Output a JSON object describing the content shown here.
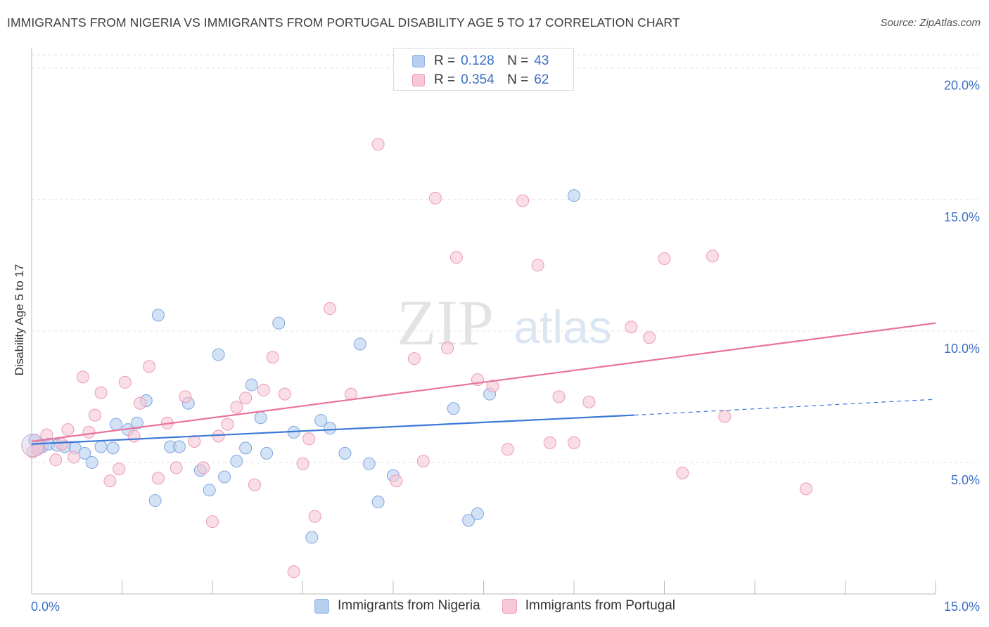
{
  "title": "IMMIGRANTS FROM NIGERIA VS IMMIGRANTS FROM PORTUGAL DISABILITY AGE 5 TO 17 CORRELATION CHART",
  "source": "Source: ZipAtlas.com",
  "watermark": {
    "zip": "ZIP",
    "atlas": "atlas"
  },
  "legend": {
    "r_label": "R =",
    "n_label": "N =",
    "rows": [
      {
        "r": "0.128",
        "n": "43",
        "fill": "#b7cff0",
        "stroke": "#8eb2e6"
      },
      {
        "r": "0.354",
        "n": "62",
        "fill": "#f7c8d6",
        "stroke": "#ef9fb8"
      }
    ]
  },
  "chart_data": {
    "type": "scatter",
    "title": "IMMIGRANTS FROM NIGERIA VS IMMIGRANTS FROM PORTUGAL DISABILITY AGE 5 TO 17 CORRELATION CHART",
    "xlabel": "",
    "ylabel": "Disability Age 5 to 17",
    "xlim": [
      0,
      15
    ],
    "ylim": [
      0,
      20.5
    ],
    "x_tick_labels": [
      "0.0%",
      "15.0%"
    ],
    "y_ticks": [
      5,
      10,
      15,
      20
    ],
    "y_tick_labels": [
      "5.0%",
      "10.0%",
      "15.0%",
      "20.0%"
    ],
    "grid": true,
    "legend_position": "top-center",
    "series": [
      {
        "name": "Immigrants from Nigeria",
        "color": "#3c78d8",
        "fill": "#b7cff0",
        "r": 0.128,
        "n": 43,
        "trend": {
          "x": [
            0.0,
            10.0
          ],
          "y": [
            5.7,
            6.8
          ]
        },
        "trend_extension": {
          "x": [
            10.0,
            15.0
          ],
          "y": [
            6.8,
            7.4
          ]
        },
        "points": [
          [
            0.05,
            5.85
          ],
          [
            0.18,
            5.6
          ],
          [
            0.28,
            5.7
          ],
          [
            0.42,
            5.65
          ],
          [
            0.55,
            5.6
          ],
          [
            0.72,
            5.55
          ],
          [
            0.88,
            5.35
          ],
          [
            1.0,
            5.0
          ],
          [
            1.15,
            5.6
          ],
          [
            1.35,
            5.55
          ],
          [
            1.4,
            6.45
          ],
          [
            1.6,
            6.25
          ],
          [
            1.75,
            6.5
          ],
          [
            1.9,
            7.35
          ],
          [
            2.05,
            3.55
          ],
          [
            2.1,
            10.6
          ],
          [
            2.3,
            5.6
          ],
          [
            2.45,
            5.6
          ],
          [
            2.6,
            7.25
          ],
          [
            2.8,
            4.7
          ],
          [
            2.95,
            3.95
          ],
          [
            3.1,
            9.1
          ],
          [
            3.2,
            4.45
          ],
          [
            3.4,
            5.05
          ],
          [
            3.55,
            5.55
          ],
          [
            3.65,
            7.95
          ],
          [
            3.8,
            6.7
          ],
          [
            3.9,
            5.35
          ],
          [
            4.1,
            10.3
          ],
          [
            4.35,
            6.15
          ],
          [
            4.65,
            2.15
          ],
          [
            4.8,
            6.6
          ],
          [
            4.95,
            6.3
          ],
          [
            5.2,
            5.35
          ],
          [
            5.45,
            9.5
          ],
          [
            5.6,
            4.95
          ],
          [
            5.75,
            3.5
          ],
          [
            6.0,
            4.5
          ],
          [
            7.0,
            7.05
          ],
          [
            7.25,
            2.8
          ],
          [
            7.4,
            3.05
          ],
          [
            7.6,
            7.6
          ],
          [
            9.0,
            15.15
          ]
        ]
      },
      {
        "name": "Immigrants from Portugal",
        "color": "#e8739b",
        "fill": "#f7c8d6",
        "r": 0.354,
        "n": 62,
        "trend": {
          "x": [
            0.0,
            15.0
          ],
          "y": [
            5.8,
            10.3
          ]
        },
        "points": [
          [
            0.02,
            5.4
          ],
          [
            0.12,
            5.55
          ],
          [
            0.25,
            6.05
          ],
          [
            0.4,
            5.1
          ],
          [
            0.5,
            5.7
          ],
          [
            0.6,
            6.25
          ],
          [
            0.7,
            5.2
          ],
          [
            0.85,
            8.25
          ],
          [
            0.95,
            6.15
          ],
          [
            1.05,
            6.8
          ],
          [
            1.15,
            7.65
          ],
          [
            1.3,
            4.3
          ],
          [
            1.45,
            4.75
          ],
          [
            1.55,
            8.05
          ],
          [
            1.7,
            6.0
          ],
          [
            1.8,
            7.25
          ],
          [
            1.95,
            8.65
          ],
          [
            2.1,
            4.4
          ],
          [
            2.25,
            6.5
          ],
          [
            2.4,
            4.8
          ],
          [
            2.55,
            7.5
          ],
          [
            2.7,
            5.8
          ],
          [
            2.85,
            4.8
          ],
          [
            3.0,
            2.75
          ],
          [
            3.1,
            6.0
          ],
          [
            3.25,
            6.45
          ],
          [
            3.4,
            7.1
          ],
          [
            3.55,
            7.45
          ],
          [
            3.7,
            4.15
          ],
          [
            3.85,
            7.75
          ],
          [
            4.0,
            9.0
          ],
          [
            4.2,
            7.6
          ],
          [
            4.35,
            0.85
          ],
          [
            4.5,
            4.95
          ],
          [
            4.6,
            5.9
          ],
          [
            4.7,
            2.95
          ],
          [
            4.95,
            10.85
          ],
          [
            5.3,
            7.6
          ],
          [
            5.75,
            17.1
          ],
          [
            6.05,
            4.3
          ],
          [
            6.35,
            8.95
          ],
          [
            6.5,
            5.05
          ],
          [
            6.7,
            15.05
          ],
          [
            6.9,
            9.35
          ],
          [
            7.05,
            12.8
          ],
          [
            7.4,
            8.15
          ],
          [
            7.65,
            7.9
          ],
          [
            7.9,
            5.5
          ],
          [
            8.15,
            14.95
          ],
          [
            8.4,
            12.5
          ],
          [
            8.6,
            5.75
          ],
          [
            8.75,
            7.5
          ],
          [
            9.0,
            5.75
          ],
          [
            9.25,
            7.3
          ],
          [
            9.95,
            10.15
          ],
          [
            10.25,
            9.75
          ],
          [
            10.5,
            12.75
          ],
          [
            10.8,
            4.6
          ],
          [
            11.3,
            12.85
          ],
          [
            11.5,
            6.75
          ],
          [
            12.85,
            4.0
          ],
          [
            0.1,
            5.5
          ]
        ]
      }
    ]
  }
}
